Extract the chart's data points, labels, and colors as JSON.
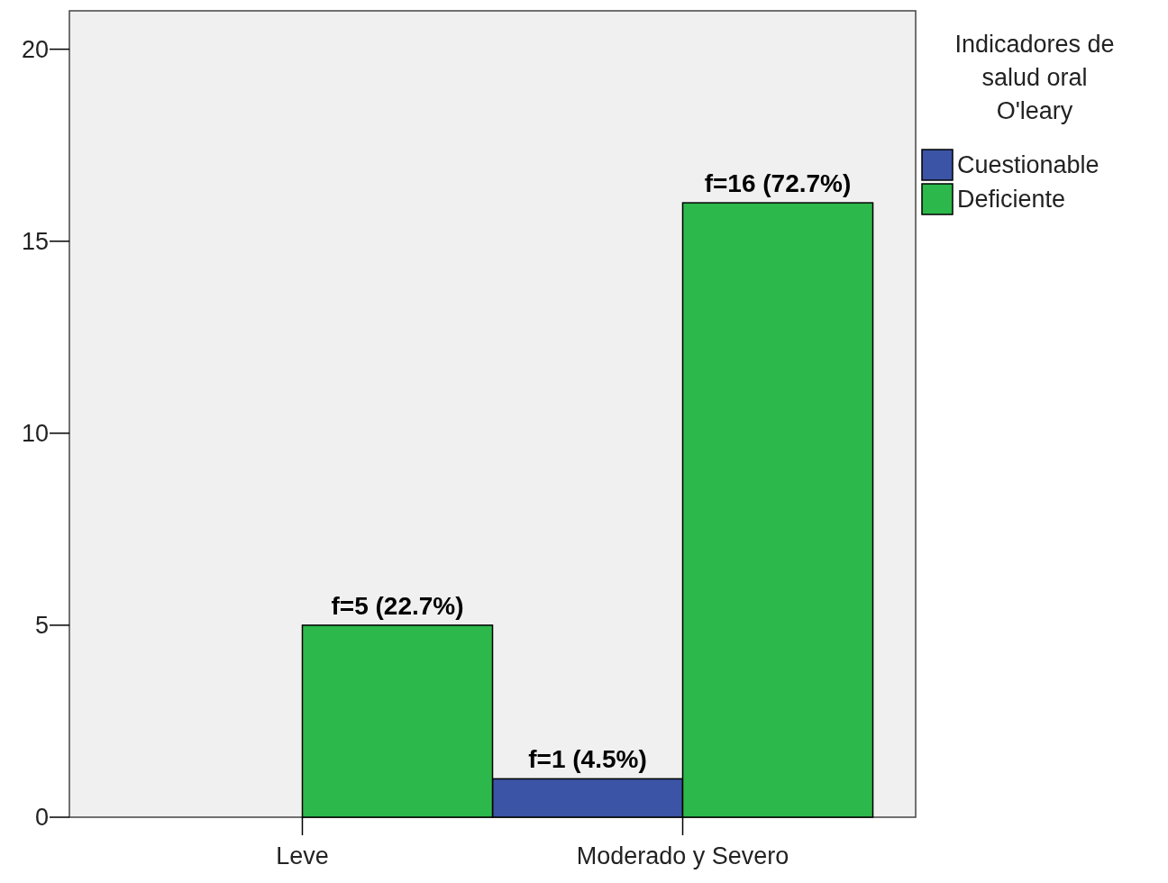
{
  "chart_data": {
    "type": "bar",
    "legend_title": "Indicadores de salud oral O'leary",
    "categories": [
      "Leve",
      "Moderado y Severo"
    ],
    "series": [
      {
        "name": "Cuestionable",
        "color": "#3b54a5",
        "values": [
          null,
          1
        ],
        "value_labels": [
          null,
          "f=1 (4.5%)"
        ]
      },
      {
        "name": "Deficiente",
        "color": "#2db84b",
        "values": [
          5,
          16
        ],
        "value_labels": [
          "f=5 (22.7%)",
          "f=16 (72.7%)"
        ]
      }
    ],
    "ylim": [
      0,
      21
    ],
    "yticks": [
      0,
      5,
      10,
      15,
      20
    ],
    "grid": false,
    "legend": "right"
  }
}
